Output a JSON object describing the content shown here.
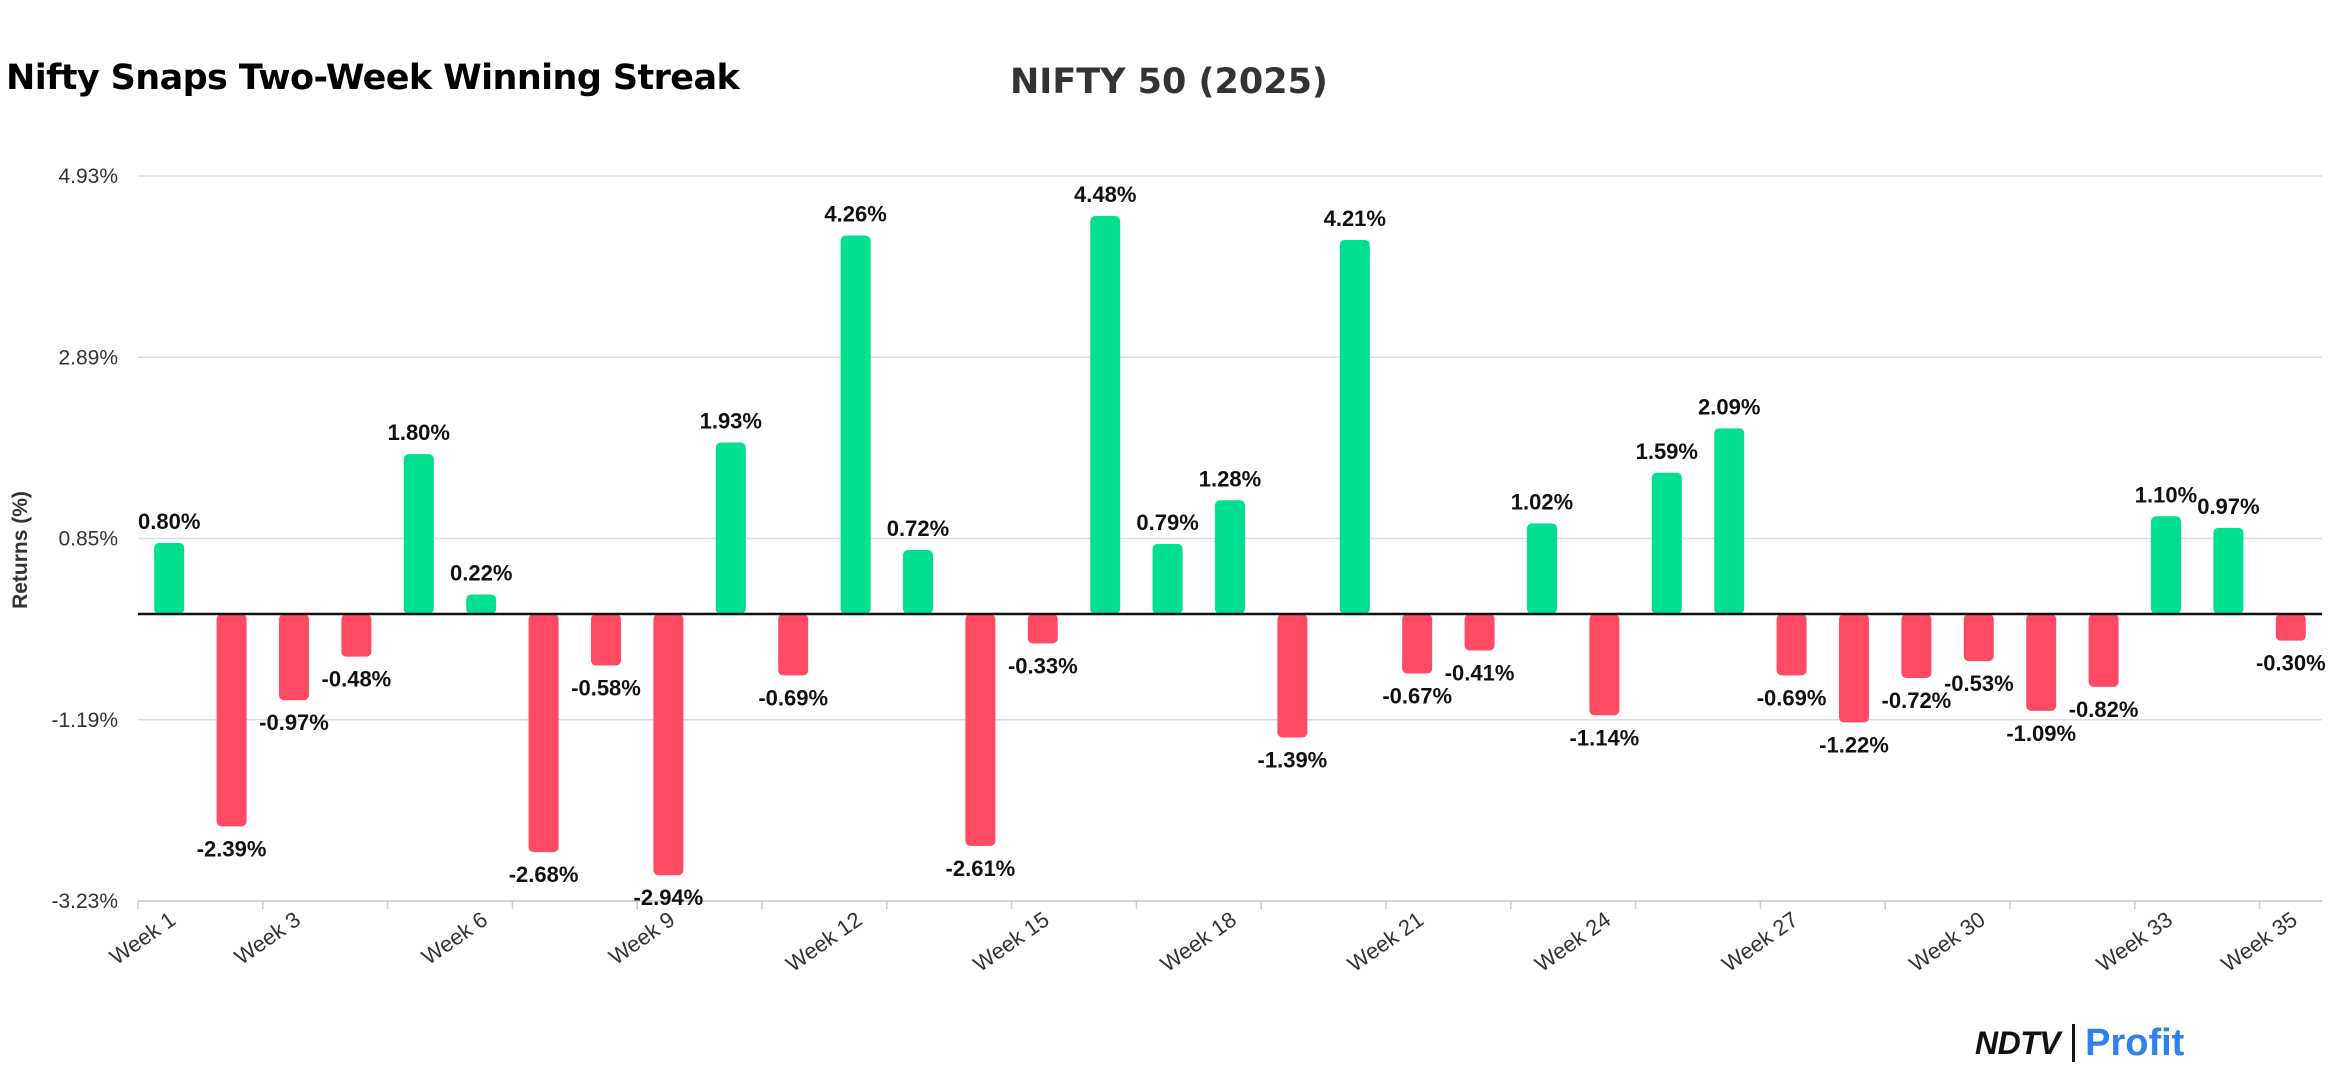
{
  "header": {
    "headline": "Nifty Snaps Two-Week Winning Streak"
  },
  "brand": {
    "ndtv": "NDTV",
    "profit": "Profit"
  },
  "colors": {
    "positive": "#00e08e",
    "negative": "#ff4a63",
    "grid": "#dddddd",
    "axis_text": "#333333",
    "baseline": "#111111"
  },
  "chart_data": {
    "type": "bar",
    "title": "NIFTY 50 (2025)",
    "xlabel": "",
    "ylabel": "Returns (%)",
    "ylim": [
      -3.23,
      4.93
    ],
    "yticks": [
      "4.93%",
      "2.89%",
      "0.85%",
      "-1.19%",
      "-3.23%"
    ],
    "grid": true,
    "legend": "none",
    "categories": [
      "Week 1",
      "Week 2",
      "Week 3",
      "Week 4",
      "Week 5",
      "Week 6",
      "Week 7",
      "Week 8",
      "Week 9",
      "Week 10",
      "Week 11",
      "Week 12",
      "Week 13",
      "Week 14",
      "Week 15",
      "Week 16",
      "Week 17",
      "Week 18",
      "Week 19",
      "Week 20",
      "Week 21",
      "Week 22",
      "Week 23",
      "Week 24",
      "Week 25",
      "Week 26",
      "Week 27",
      "Week 28",
      "Week 29",
      "Week 30",
      "Week 31",
      "Week 32",
      "Week 33",
      "Week 34",
      "Week 35"
    ],
    "shown_tick_labels": [
      "Week 1",
      "Week 3",
      "Week 6",
      "Week 9",
      "Week 12",
      "Week 15",
      "Week 18",
      "Week 21",
      "Week 24",
      "Week 27",
      "Week 30",
      "Week 33",
      "Week 35"
    ],
    "values": [
      0.8,
      -2.39,
      -0.97,
      -0.48,
      1.8,
      0.22,
      -2.68,
      -0.58,
      -2.94,
      1.93,
      -0.69,
      4.26,
      0.72,
      -2.61,
      -0.33,
      4.48,
      0.79,
      1.28,
      -1.39,
      4.21,
      -0.67,
      -0.41,
      1.02,
      -1.14,
      1.59,
      2.09,
      -0.69,
      -1.22,
      -0.72,
      -0.53,
      -1.09,
      -0.82,
      1.1,
      0.97,
      -0.3
    ],
    "data_labels": [
      "0.80%",
      "-2.39%",
      "-0.97%",
      "-0.48%",
      "1.80%",
      "0.22%",
      "-2.68%",
      "-0.58%",
      "-2.94%",
      "1.93%",
      "-0.69%",
      "4.26%",
      "0.72%",
      "-2.61%",
      "-0.33%",
      "4.48%",
      "0.79%",
      "1.28%",
      "-1.39%",
      "4.21%",
      "-0.67%",
      "-0.41%",
      "1.02%",
      "-1.14%",
      "1.59%",
      "2.09%",
      "-0.69%",
      "-1.22%",
      "-0.72%",
      "-0.53%",
      "-1.09%",
      "-0.82%",
      "1.10%",
      "0.97%",
      "-0.30%"
    ]
  }
}
